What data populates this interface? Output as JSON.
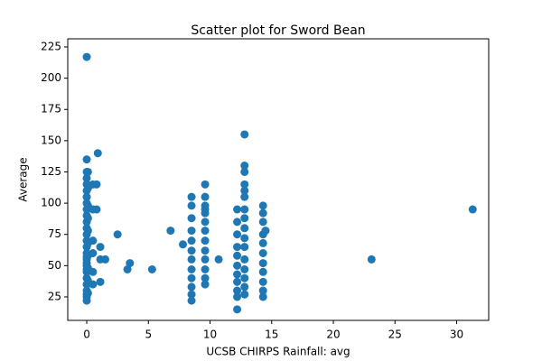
{
  "chart_data": {
    "type": "scatter",
    "title": "Scatter plot for Sword Bean",
    "x_label": "UCSB CHIRPS Rainfall: avg",
    "y_label": "Average",
    "color": "#1f77b4",
    "x": [
      0,
      0,
      0,
      0,
      0,
      0,
      0,
      0,
      0,
      0,
      0,
      0,
      0,
      0,
      0,
      0,
      0,
      0,
      0,
      0,
      0,
      0,
      0,
      0,
      0,
      0,
      0,
      0,
      0.1,
      0.1,
      0.1,
      0.1,
      0.1,
      0.1,
      0.1,
      0.1,
      0.1,
      0.1,
      0.5,
      0.5,
      0.5,
      0.5,
      0.5,
      0.5,
      0.8,
      0.8,
      0.9,
      1.1,
      1.1,
      1.1,
      1.5,
      2.5,
      3.3,
      3.5,
      5.3,
      6.8,
      7.8,
      8.5,
      8.5,
      8.5,
      8.5,
      8.5,
      8.5,
      8.5,
      8.5,
      8.5,
      8.5,
      8.5,
      8.5,
      9.6,
      9.6,
      9.6,
      9.6,
      9.6,
      9.6,
      9.6,
      9.6,
      9.6,
      9.6,
      9.6,
      9.6,
      9.6,
      10.7,
      12.2,
      12.2,
      12.2,
      12.2,
      12.2,
      12.2,
      12.2,
      12.2,
      12.2,
      12.2,
      12.2,
      12.8,
      12.8,
      12.8,
      12.8,
      12.8,
      12.8,
      12.8,
      12.8,
      12.8,
      12.8,
      12.8,
      12.8,
      12.8,
      12.8,
      12.8,
      12.8,
      14.3,
      14.3,
      14.3,
      14.3,
      14.3,
      14.3,
      14.3,
      14.3,
      14.3,
      14.3,
      14.3,
      14.5,
      23.1,
      31.3
    ],
    "values": [
      217,
      135,
      125,
      120,
      115,
      110,
      105,
      100,
      95,
      90,
      85,
      80,
      75,
      70,
      65,
      60,
      55,
      50,
      45,
      40,
      35,
      30,
      27,
      25,
      22,
      47,
      52,
      57,
      125,
      112,
      98,
      88,
      78,
      68,
      58,
      48,
      38,
      28,
      115,
      95,
      70,
      60,
      45,
      35,
      95,
      115,
      140,
      65,
      55,
      37,
      55,
      75,
      47,
      52,
      47,
      78,
      67,
      105,
      98,
      88,
      78,
      70,
      62,
      55,
      47,
      40,
      33,
      27,
      22,
      115,
      105,
      98,
      92,
      85,
      78,
      70,
      62,
      55,
      47,
      40,
      35,
      95,
      55,
      95,
      85,
      75,
      65,
      58,
      50,
      43,
      37,
      30,
      25,
      15,
      155,
      130,
      125,
      115,
      110,
      105,
      95,
      88,
      80,
      72,
      65,
      55,
      47,
      40,
      33,
      27,
      98,
      92,
      85,
      75,
      68,
      60,
      52,
      45,
      37,
      30,
      25,
      78,
      55,
      95
    ],
    "xlim": [
      -1.54,
      32.6
    ],
    "ylim": [
      6.2,
      231.5
    ],
    "xticks": [
      0,
      5,
      10,
      15,
      20,
      25,
      30
    ],
    "yticks": [
      25,
      50,
      75,
      100,
      125,
      150,
      175,
      200,
      225
    ]
  }
}
